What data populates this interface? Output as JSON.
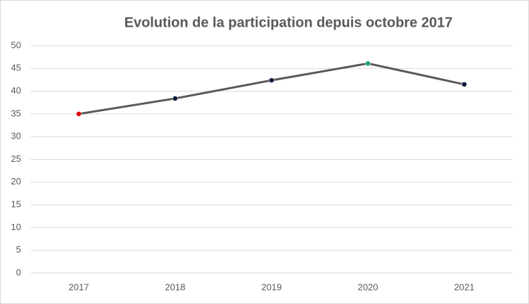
{
  "chart_data": {
    "type": "line",
    "title": "Evolution de la participation depuis octobre 2017",
    "categories": [
      "2017",
      "2018",
      "2019",
      "2020",
      "2021"
    ],
    "series": [
      {
        "color": "#595959",
        "values": [
          35,
          38.4,
          42.4,
          46.1,
          41.5
        ],
        "marker_colors": [
          "#e00000",
          "#0a1a3a",
          "#0a1a3a",
          "#1aa37a",
          "#0a1a3a"
        ]
      }
    ],
    "ylim": [
      0,
      50
    ],
    "yticks": [
      0,
      5,
      10,
      15,
      20,
      25,
      30,
      35,
      40,
      45,
      50
    ],
    "grid": true
  }
}
